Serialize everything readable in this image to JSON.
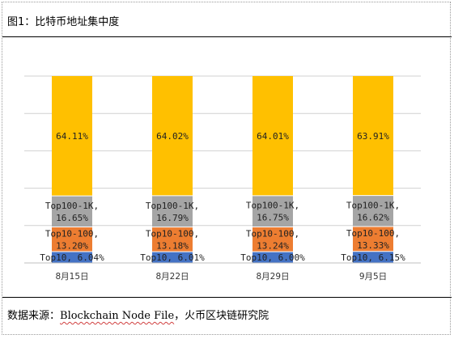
{
  "page": {
    "title": "图1：比特币地址集中度",
    "source_prefix": "数据来源：",
    "source_en": "Blockchain Node File",
    "source_sep": "，",
    "source_suffix": "火币区块链研究院"
  },
  "chart_data": {
    "type": "bar",
    "stacked": true,
    "title": "",
    "xlabel": "",
    "ylabel": "",
    "ylim": [
      0,
      100
    ],
    "grid": true,
    "categories": [
      "8月15日",
      "8月22日",
      "8月29日",
      "9月5日"
    ],
    "series": [
      {
        "name": "Top10",
        "values": [
          6.04,
          6.01,
          6.0,
          6.15
        ],
        "labels": [
          "Top10, 6.04%",
          "Top10, 6.01%",
          "Top10, 6.00%",
          "Top10, 6.15%"
        ],
        "color": "#4472C4"
      },
      {
        "name": "Top10-100",
        "values": [
          13.2,
          13.18,
          13.24,
          13.33
        ],
        "labels": [
          "Top10-100,\n13.20%",
          "Top10-100,\n13.18%",
          "Top10-100,\n13.24%",
          "Top10-100,\n13.33%"
        ],
        "color": "#ED7D31"
      },
      {
        "name": "Top100-1K",
        "values": [
          16.65,
          16.79,
          16.75,
          16.62
        ],
        "labels": [
          "Top100-1K,\n16.65%",
          "Top100-1K,\n16.79%",
          "Top100-1K,\n16.75%",
          "Top100-1K,\n16.62%"
        ],
        "color": "#A5A5A5"
      },
      {
        "name": "",
        "values": [
          64.11,
          64.02,
          64.01,
          63.91
        ],
        "labels": [
          "64.11%",
          "64.02%",
          "64.01%",
          "63.91%"
        ],
        "color": "#FFC000"
      }
    ]
  }
}
